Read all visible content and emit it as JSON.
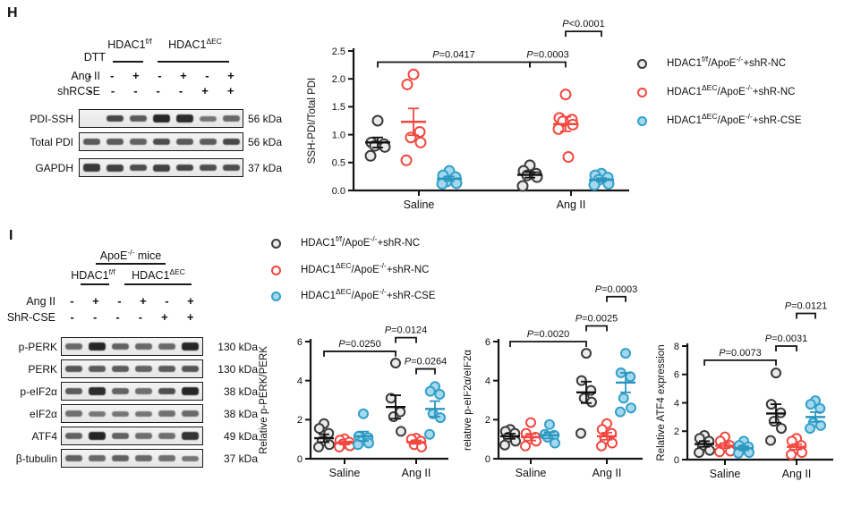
{
  "panelH": {
    "panel_label": "H",
    "blot": {
      "dtt_label": "DTT",
      "group1": {
        "base": "HDAC1",
        "sup": "f/f"
      },
      "group2": {
        "base": "HDAC1",
        "sup": "ΔEC"
      },
      "condition_rows": [
        {
          "label": "Ang II",
          "values": [
            "-",
            "-",
            "+",
            "-",
            "+",
            "-",
            "+"
          ]
        },
        {
          "label": "shRCSE",
          "values": [
            "-",
            "-",
            "-",
            "-",
            "-",
            "+",
            "+"
          ]
        }
      ],
      "bands": [
        {
          "label": "PDI-SSH",
          "kda": "56 kDa",
          "intensities": [
            0,
            0.75,
            0.6,
            1,
            0.95,
            0.4,
            0.5
          ]
        },
        {
          "label": "Total PDI",
          "kda": "56 kDa",
          "intensities": [
            0.6,
            0.6,
            0.55,
            0.7,
            0.6,
            0.6,
            0.75
          ]
        },
        {
          "label": "GAPDH",
          "kda": "37 kDa",
          "intensities": [
            0.85,
            0.8,
            0.7,
            0.8,
            0.75,
            0.7,
            0.7
          ]
        }
      ]
    }
  },
  "panelI": {
    "panel_label": "I",
    "blot": {
      "mice": {
        "base": "ApoE",
        "sup": "-/-",
        "rest": " mice"
      },
      "group1": {
        "base": "HDAC1",
        "sup": "f/f"
      },
      "group2": {
        "base": "HDAC1",
        "sup": "ΔEC"
      },
      "condition_rows": [
        {
          "label": "Ang II",
          "values": [
            "-",
            "+",
            "-",
            "+",
            "-",
            "+"
          ]
        },
        {
          "label": "ShR-CSE",
          "values": [
            "-",
            "-",
            "-",
            "-",
            "+",
            "+"
          ]
        }
      ],
      "bands": [
        {
          "label": "p-PERK",
          "kda": "130 kDa",
          "intensities": [
            0.5,
            1,
            0.55,
            0.5,
            0.5,
            1
          ]
        },
        {
          "label": "PERK",
          "kda": "130 kDa",
          "intensities": [
            0.65,
            0.6,
            0.6,
            0.55,
            0.6,
            0.65
          ]
        },
        {
          "label": "p-eIF2α",
          "kda": "38 kDa",
          "intensities": [
            0.6,
            0.95,
            0.55,
            0.45,
            0.7,
            1
          ]
        },
        {
          "label": "eIF2α",
          "kda": "38 kDa",
          "intensities": [
            0.45,
            0.4,
            0.4,
            0.4,
            0.45,
            0.5
          ]
        },
        {
          "label": "ATF4",
          "kda": "49 kDa",
          "intensities": [
            0.55,
            1,
            0.55,
            0.45,
            0.45,
            0.9
          ]
        },
        {
          "label": "β-tubulin",
          "kda": "37 kDa",
          "intensities": [
            0.55,
            0.5,
            0.55,
            0.5,
            0.45,
            0.4
          ]
        }
      ]
    }
  },
  "legend": {
    "entries": [
      {
        "color_key": "black",
        "p1": "HDAC1",
        "s1": "f/f",
        "p2": "/ApoE",
        "s2": "-/-",
        "p3": "+shR-NC"
      },
      {
        "color_key": "red",
        "p1": "HDAC1",
        "s1": "ΔEC",
        "p2": "/ApoE",
        "s2": "-/-",
        "p3": "+shR-NC"
      },
      {
        "color_key": "blue",
        "p1": "HDAC1",
        "s1": "ΔEC",
        "p2": "/ApoE",
        "s2": "-/-",
        "p3": "+shR-CSE"
      }
    ]
  },
  "colors": {
    "black": {
      "stroke": "#3a3a3a",
      "fill": "#eaeaea",
      "bar": "#111111"
    },
    "red": {
      "stroke": "#f2473f",
      "fill": "#ffffff",
      "bar": "#f2473f"
    },
    "blue": {
      "stroke": "#33a0c9",
      "fill": "#a5d8ee",
      "bar": "#2a96bd"
    },
    "axis": "#141414"
  },
  "chart_data": [
    {
      "id": "chart-H",
      "type": "scatter",
      "title": "",
      "ylabel": "SSH-PDI/Total PDI",
      "ylim": [
        0,
        2.5
      ],
      "yticks": [
        0,
        0.5,
        1.0,
        1.5,
        2.0,
        2.5
      ],
      "ytick_labels": [
        "0.0",
        "0.5",
        "1.0",
        "1.5",
        "2.0",
        "2.5"
      ],
      "categories": [
        "Saline",
        "Ang II"
      ],
      "series": [
        {
          "name": "HDAC1f/f/ApoE-/-+shR-NC",
          "color_key": "black",
          "points": [
            [
              1.25,
              0.86,
              0.83,
              0.8,
              0.78,
              0.62
            ],
            [
              0.45,
              0.35,
              0.3,
              0.27,
              0.24,
              0.08
            ]
          ],
          "mean": [
            0.86,
            0.28
          ],
          "sem": [
            0.09,
            0.05
          ]
        },
        {
          "name": "HDAC1ΔEC/ApoE-/-+shR-NC",
          "color_key": "red",
          "points": [
            [
              2.08,
              1.9,
              1.05,
              0.95,
              0.86,
              0.54
            ],
            [
              1.72,
              1.3,
              1.27,
              1.24,
              1.18,
              1.1,
              0.6
            ]
          ],
          "mean": [
            1.23,
            1.19
          ],
          "sem": [
            0.24,
            0.13
          ]
        },
        {
          "name": "HDAC1ΔEC/ApoE-/-+shR-CSE",
          "color_key": "blue",
          "points": [
            [
              0.35,
              0.27,
              0.24,
              0.16,
              0.13,
              0.12
            ],
            [
              0.3,
              0.27,
              0.23,
              0.19,
              0.12,
              0.1
            ]
          ],
          "mean": [
            0.21,
            0.19
          ],
          "sem": [
            0.04,
            0.03
          ]
        }
      ],
      "pvalues": [
        {
          "label": "P=0.0417",
          "from": [
            0,
            0
          ],
          "to": [
            1,
            0
          ],
          "y": 2.3
        },
        {
          "label": "P=0.0003",
          "from": [
            1,
            0
          ],
          "to": [
            1,
            1
          ],
          "y": 2.3
        },
        {
          "label": "P<0.0001",
          "from": [
            1,
            1
          ],
          "to": [
            1,
            2
          ],
          "y": 2.85
        }
      ]
    },
    {
      "id": "chart-I1",
      "type": "scatter",
      "title": "",
      "ylabel": "Relative p-PERK/PERK",
      "ylim": [
        0,
        6
      ],
      "yticks": [
        0,
        2,
        4,
        6
      ],
      "ytick_labels": [
        "0",
        "2",
        "4",
        "6"
      ],
      "categories": [
        "Saline",
        "Ang II"
      ],
      "series": [
        {
          "name": "HDAC1f/f/ApoE-/-+shR-NC",
          "color_key": "black",
          "points": [
            [
              1.8,
              1.55,
              1.3,
              0.9,
              0.72,
              0.6
            ],
            [
              4.9,
              3.1,
              2.4,
              2.15,
              1.4
            ]
          ],
          "mean": [
            1.05,
            2.65
          ],
          "sem": [
            0.2,
            0.6
          ]
        },
        {
          "name": "HDAC1ΔEC/ApoE-/-+shR-NC",
          "color_key": "red",
          "points": [
            [
              1.02,
              0.95,
              0.85,
              0.75,
              0.66,
              0.6
            ],
            [
              1.05,
              1.0,
              0.9,
              0.72,
              0.6
            ]
          ],
          "mean": [
            0.8,
            0.85
          ],
          "sem": [
            0.07,
            0.09
          ]
        },
        {
          "name": "HDAC1ΔEC/ApoE-/-+shR-CSE",
          "color_key": "blue",
          "points": [
            [
              2.3,
              1.15,
              1.08,
              0.9,
              0.8,
              0.72
            ],
            [
              3.7,
              3.45,
              3.3,
              2.3,
              2.1,
              1.25
            ]
          ],
          "mean": [
            1.15,
            2.55
          ],
          "sem": [
            0.24,
            0.4
          ]
        }
      ],
      "pvalues": [
        {
          "label": "P=0.0250",
          "from": [
            0,
            0
          ],
          "to": [
            1,
            0
          ],
          "y": 5.5
        },
        {
          "label": "P=0.0124",
          "from": [
            1,
            0
          ],
          "to": [
            1,
            1
          ],
          "y": 6.2
        },
        {
          "label": "P=0.0264",
          "from": [
            1,
            1
          ],
          "to": [
            1,
            2
          ],
          "y": 4.6
        }
      ]
    },
    {
      "id": "chart-I2",
      "type": "scatter",
      "title": "",
      "ylabel": "relative p-eIF2α/eIF2α",
      "ylim": [
        0,
        6
      ],
      "yticks": [
        0,
        2,
        4,
        6
      ],
      "ytick_labels": [
        "0",
        "2",
        "4",
        "6"
      ],
      "categories": [
        "Saline",
        "Ang II"
      ],
      "series": [
        {
          "name": "HDAC1f/f/ApoE-/-+shR-NC",
          "color_key": "black",
          "points": [
            [
              1.5,
              1.4,
              1.3,
              1.1,
              0.9,
              0.7
            ],
            [
              5.4,
              4.0,
              3.5,
              3.1,
              2.9,
              1.3
            ]
          ],
          "mean": [
            1.15,
            3.4
          ],
          "sem": [
            0.13,
            0.55
          ]
        },
        {
          "name": "HDAC1ΔEC/ApoE-/-+shR-NC",
          "color_key": "red",
          "points": [
            [
              1.85,
              1.3,
              1.1,
              1.0,
              0.9,
              0.65
            ],
            [
              1.8,
              1.5,
              1.3,
              1.0,
              0.8,
              0.65
            ]
          ],
          "mean": [
            1.1,
            1.15
          ],
          "sem": [
            0.17,
            0.18
          ]
        },
        {
          "name": "HDAC1ΔEC/ApoE-/-+shR-CSE",
          "color_key": "blue",
          "points": [
            [
              1.75,
              1.25,
              1.2,
              1.1,
              0.8
            ],
            [
              5.4,
              4.4,
              4.2,
              3.1,
              2.6,
              2.4
            ]
          ],
          "mean": [
            1.2,
            3.9
          ],
          "sem": [
            0.16,
            0.5
          ]
        }
      ],
      "pvalues": [
        {
          "label": "P=0.0020",
          "from": [
            0,
            0
          ],
          "to": [
            1,
            0
          ],
          "y": 6.0
        },
        {
          "label": "P=0.0025",
          "from": [
            1,
            0
          ],
          "to": [
            1,
            1
          ],
          "y": 6.8
        },
        {
          "label": "P=0.0003",
          "from": [
            1,
            1
          ],
          "to": [
            1,
            2
          ],
          "y": 8.3
        }
      ]
    },
    {
      "id": "chart-I3",
      "type": "scatter",
      "title": "",
      "ylabel": "Relative ATF4 expression",
      "ylim": [
        0,
        8
      ],
      "yticks": [
        0,
        2,
        4,
        6,
        8
      ],
      "ytick_labels": [
        "0",
        "2",
        "4",
        "6",
        "8"
      ],
      "categories": [
        "Saline",
        "Ang II"
      ],
      "series": [
        {
          "name": "HDAC1f/f/ApoE-/-+shR-NC",
          "color_key": "black",
          "points": [
            [
              1.7,
              1.5,
              1.3,
              1.0,
              0.65,
              0.5
            ],
            [
              6.1,
              3.9,
              3.3,
              2.7,
              2.2,
              1.35
            ]
          ],
          "mean": [
            1.1,
            3.25
          ],
          "sem": [
            0.2,
            0.65
          ]
        },
        {
          "name": "HDAC1ΔEC/ApoE-/-+shR-NC",
          "color_key": "red",
          "points": [
            [
              1.6,
              1.3,
              1.0,
              0.85,
              0.6,
              0.55
            ],
            [
              1.5,
              1.3,
              1.0,
              0.75,
              0.5,
              0.35
            ]
          ],
          "mean": [
            0.98,
            0.9
          ],
          "sem": [
            0.17,
            0.19
          ]
        },
        {
          "name": "HDAC1ΔEC/ApoE-/-+shR-CSE",
          "color_key": "blue",
          "points": [
            [
              1.3,
              1.0,
              0.9,
              0.7,
              0.5,
              0.45
            ],
            [
              4.15,
              3.9,
              3.6,
              2.6,
              2.4,
              2.2
            ]
          ],
          "mean": [
            0.8,
            3.0
          ],
          "sem": [
            0.14,
            0.34
          ]
        }
      ],
      "pvalues": [
        {
          "label": "P=0.0073",
          "from": [
            0,
            0
          ],
          "to": [
            1,
            0
          ],
          "y": 7.0
        },
        {
          "label": "P=0.0031",
          "from": [
            1,
            0
          ],
          "to": [
            1,
            1
          ],
          "y": 8.0
        },
        {
          "label": "P=0.0121",
          "from": [
            1,
            1
          ],
          "to": [
            1,
            2
          ],
          "y": 10.3
        }
      ]
    }
  ]
}
